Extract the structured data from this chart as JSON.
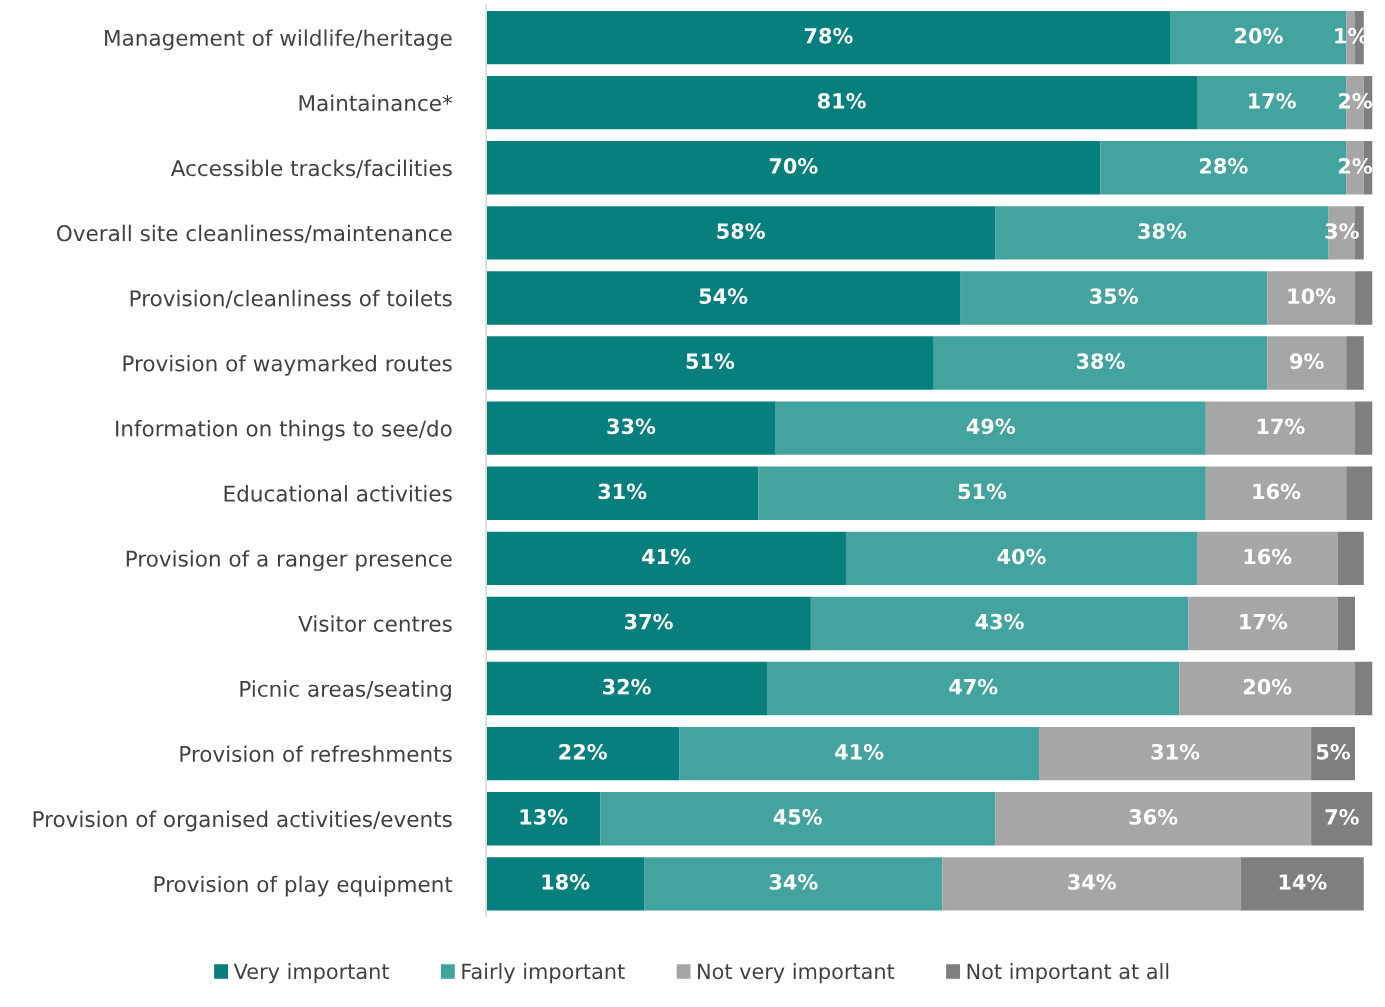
{
  "chart_data": {
    "type": "bar",
    "orientation": "horizontal",
    "stacked": true,
    "legend": "bottom",
    "grid": false,
    "tick_labels": "y",
    "xlim": [
      0,
      101
    ],
    "categories": [
      "Management of wildlife/heritage",
      "Maintainance*",
      "Accessible tracks/facilities",
      "Overall site cleanliness/maintenance",
      "Provision/cleanliness of toilets",
      "Provision of waymarked routes",
      "Information on things to see/do",
      "Educational activities",
      "Provision of a ranger presence",
      "Visitor centres",
      "Picnic areas/seating",
      "Provision of refreshments",
      "Provision of organised activities/events",
      "Provision of play equipment"
    ],
    "series": [
      {
        "name": "Very important",
        "color": "#067f7d",
        "values": [
          78,
          81,
          70,
          58,
          54,
          51,
          33,
          31,
          41,
          37,
          32,
          22,
          13,
          18
        ],
        "value_labels": [
          "78%",
          "81%",
          "70%",
          "58%",
          "54%",
          "51%",
          "33%",
          "31%",
          "41%",
          "37%",
          "32%",
          "22%",
          "13%",
          "18%"
        ]
      },
      {
        "name": "Fairly important",
        "color": "#43a39f",
        "values": [
          20,
          17,
          28,
          38,
          35,
          38,
          49,
          51,
          40,
          43,
          47,
          41,
          45,
          34
        ],
        "value_labels": [
          "20%",
          "17%",
          "28%",
          "38%",
          "35%",
          "38%",
          "49%",
          "51%",
          "40%",
          "43%",
          "47%",
          "41%",
          "45%",
          "34%"
        ]
      },
      {
        "name": "Not very important",
        "color": "#a6a6a6",
        "values": [
          1,
          2,
          2,
          3,
          10,
          9,
          17,
          16,
          16,
          17,
          20,
          31,
          36,
          34
        ],
        "value_labels": [
          "1%",
          "2%",
          "2%",
          "3%",
          "10%",
          "9%",
          "17%",
          "16%",
          "16%",
          "17%",
          "20%",
          "31%",
          "36%",
          "34%"
        ]
      },
      {
        "name": "Not important at all",
        "color": "#7f7f7f",
        "values": [
          1,
          1,
          1,
          1,
          2,
          2,
          2,
          3,
          3,
          2,
          2,
          5,
          7,
          14
        ],
        "value_labels": [
          null,
          null,
          null,
          null,
          null,
          null,
          null,
          null,
          null,
          null,
          null,
          "5%",
          "7%",
          "14%"
        ]
      }
    ]
  }
}
